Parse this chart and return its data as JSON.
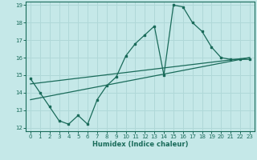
{
  "xlabel": "Humidex (Indice chaleur)",
  "bg_color": "#c5e8e8",
  "grid_color": "#b0d8d8",
  "line_color": "#1a6b5a",
  "xlim": [
    -0.5,
    23.5
  ],
  "ylim": [
    11.8,
    19.2
  ],
  "xticks": [
    0,
    1,
    2,
    3,
    4,
    5,
    6,
    7,
    8,
    9,
    10,
    11,
    12,
    13,
    14,
    15,
    16,
    17,
    18,
    19,
    20,
    21,
    22,
    23
  ],
  "yticks": [
    12,
    13,
    14,
    15,
    16,
    17,
    18,
    19
  ],
  "line1_x": [
    0,
    1,
    2,
    3,
    4,
    5,
    6,
    7,
    8,
    9,
    10,
    11,
    12,
    13,
    14,
    15,
    16,
    17,
    18,
    19,
    20,
    21,
    22,
    23
  ],
  "line1_y": [
    14.8,
    14.0,
    13.2,
    12.4,
    12.2,
    12.7,
    12.2,
    13.6,
    14.4,
    14.9,
    16.1,
    16.8,
    17.3,
    17.8,
    15.0,
    19.0,
    18.9,
    18.0,
    17.5,
    16.6,
    16.0,
    15.9,
    15.9,
    15.9
  ],
  "line2_x": [
    0,
    23
  ],
  "line2_y": [
    13.6,
    16.0
  ],
  "line3_x": [
    0,
    23
  ],
  "line3_y": [
    14.5,
    16.0
  ]
}
